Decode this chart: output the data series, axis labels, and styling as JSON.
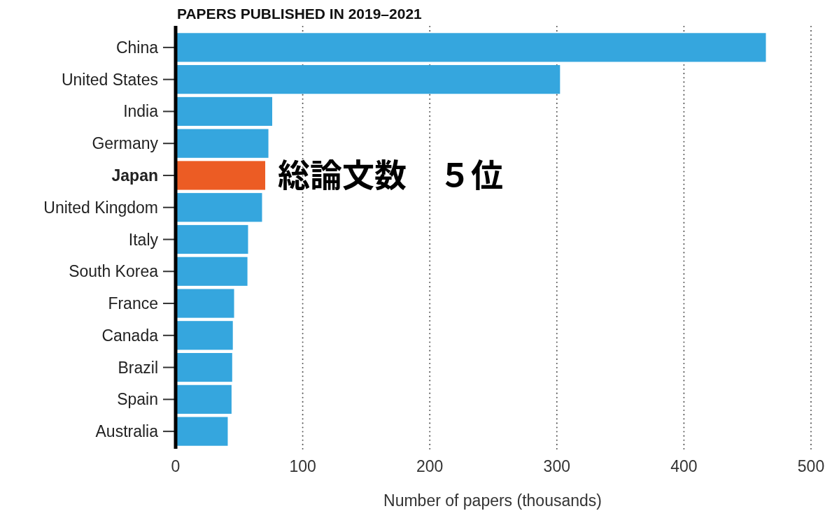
{
  "chart_data": {
    "type": "bar",
    "orientation": "horizontal",
    "title": "PAPERS PUBLISHED IN 2019–2021",
    "xlabel": "Number of papers (thousands)",
    "categories": [
      "China",
      "United States",
      "India",
      "Germany",
      "Japan",
      "United Kingdom",
      "Italy",
      "South Korea",
      "France",
      "Canada",
      "Brazil",
      "Spain",
      "Australia"
    ],
    "values": [
      464.5,
      302.5,
      76,
      73,
      70.5,
      68,
      57,
      56.5,
      46,
      45,
      44.5,
      44,
      41
    ],
    "colors": [
      "#35a6de",
      "#35a6de",
      "#35a6de",
      "#35a6de",
      "#ec5c24",
      "#35a6de",
      "#35a6de",
      "#35a6de",
      "#35a6de",
      "#35a6de",
      "#35a6de",
      "#35a6de",
      "#35a6de"
    ],
    "xlim": [
      0,
      500
    ],
    "xticks": [
      0,
      100,
      200,
      300,
      400,
      500
    ],
    "grid": "x",
    "annotations": [
      {
        "text": "総論文数　５位",
        "x": 70.5,
        "y": "Japan"
      }
    ]
  }
}
